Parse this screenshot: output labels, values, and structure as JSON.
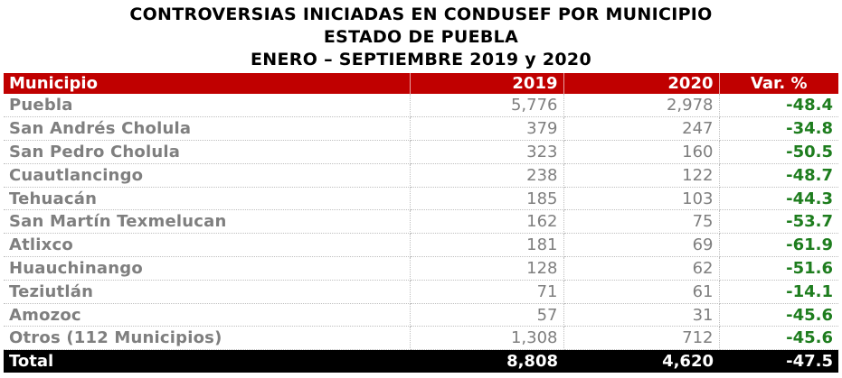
{
  "title": {
    "line1": "CONTROVERSIAS INICIADAS EN CONDUSEF POR MUNICIPIO",
    "line2": "ESTADO DE PUEBLA",
    "line3": "ENERO – SEPTIEMBRE 2019 y 2020"
  },
  "columns": {
    "municipio": "Municipio",
    "y2019": "2019",
    "y2020": "2020",
    "var": "Var. %"
  },
  "rows": [
    {
      "municipio": "Puebla",
      "y2019": "5,776",
      "y2020": "2,978",
      "var": "-48.4"
    },
    {
      "municipio": "San Andrés Cholula",
      "y2019": "379",
      "y2020": "247",
      "var": "-34.8"
    },
    {
      "municipio": "San Pedro Cholula",
      "y2019": "323",
      "y2020": "160",
      "var": "-50.5"
    },
    {
      "municipio": "Cuautlancingo",
      "y2019": "238",
      "y2020": "122",
      "var": "-48.7"
    },
    {
      "municipio": "Tehuacán",
      "y2019": "185",
      "y2020": "103",
      "var": "-44.3"
    },
    {
      "municipio": "San Martín Texmelucan",
      "y2019": "162",
      "y2020": "75",
      "var": "-53.7"
    },
    {
      "municipio": "Atlixco",
      "y2019": "181",
      "y2020": "69",
      "var": "-61.9"
    },
    {
      "municipio": "Huauchinango",
      "y2019": "128",
      "y2020": "62",
      "var": "-51.6"
    },
    {
      "municipio": "Teziutlán",
      "y2019": "71",
      "y2020": "61",
      "var": "-14.1"
    },
    {
      "municipio": "Amozoc",
      "y2019": "57",
      "y2020": "31",
      "var": "-45.6"
    },
    {
      "municipio": "Otros (112 Municipios)",
      "y2019": "1,308",
      "y2020": "712",
      "var": "-45.6"
    }
  ],
  "total": {
    "label": "Total",
    "y2019": "8,808",
    "y2020": "4,620",
    "var": "-47.5"
  }
}
